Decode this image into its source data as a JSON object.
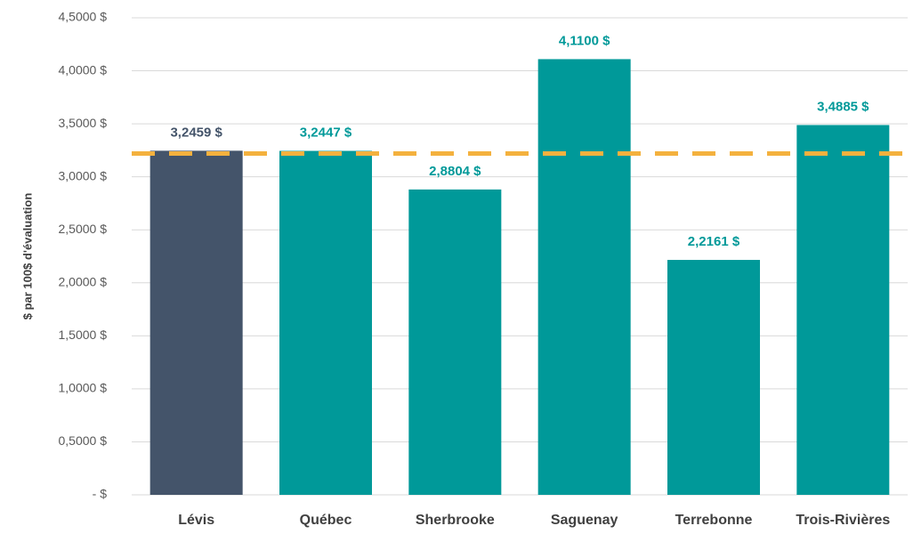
{
  "chart_data": {
    "type": "bar",
    "y_label": "$ par 100$ d'évaluation",
    "categories": [
      "Lévis",
      "Québec",
      "Sherbrooke",
      "Saguenay",
      "Terrebonne",
      "Trois-Rivières"
    ],
    "values": [
      3.2459,
      3.2447,
      2.8804,
      4.11,
      2.2161,
      3.4885
    ],
    "value_labels": [
      "3,2459 $",
      "3,2447 $",
      "2,8804 $",
      "4,1100 $",
      "2,2161 $",
      "3,4885 $"
    ],
    "colors": [
      "#44546a",
      "#009999",
      "#009999",
      "#009999",
      "#009999",
      "#009999"
    ],
    "reference_line": {
      "value": 3.22,
      "color": "#f4b13e"
    },
    "ylim": [
      0,
      4.5
    ],
    "yticks": [
      {
        "value": 0,
        "label": "- $"
      },
      {
        "value": 0.5,
        "label": "0,5000 $"
      },
      {
        "value": 1,
        "label": "1,0000 $"
      },
      {
        "value": 1.5,
        "label": "1,5000 $"
      },
      {
        "value": 2,
        "label": "2,0000 $"
      },
      {
        "value": 2.5,
        "label": "2,5000 $"
      },
      {
        "value": 3,
        "label": "3,0000 $"
      },
      {
        "value": 3.5,
        "label": "3,5000 $"
      },
      {
        "value": 4,
        "label": "4,0000 $"
      },
      {
        "value": 4.5,
        "label": "4,5000 $"
      }
    ],
    "grid": true
  }
}
